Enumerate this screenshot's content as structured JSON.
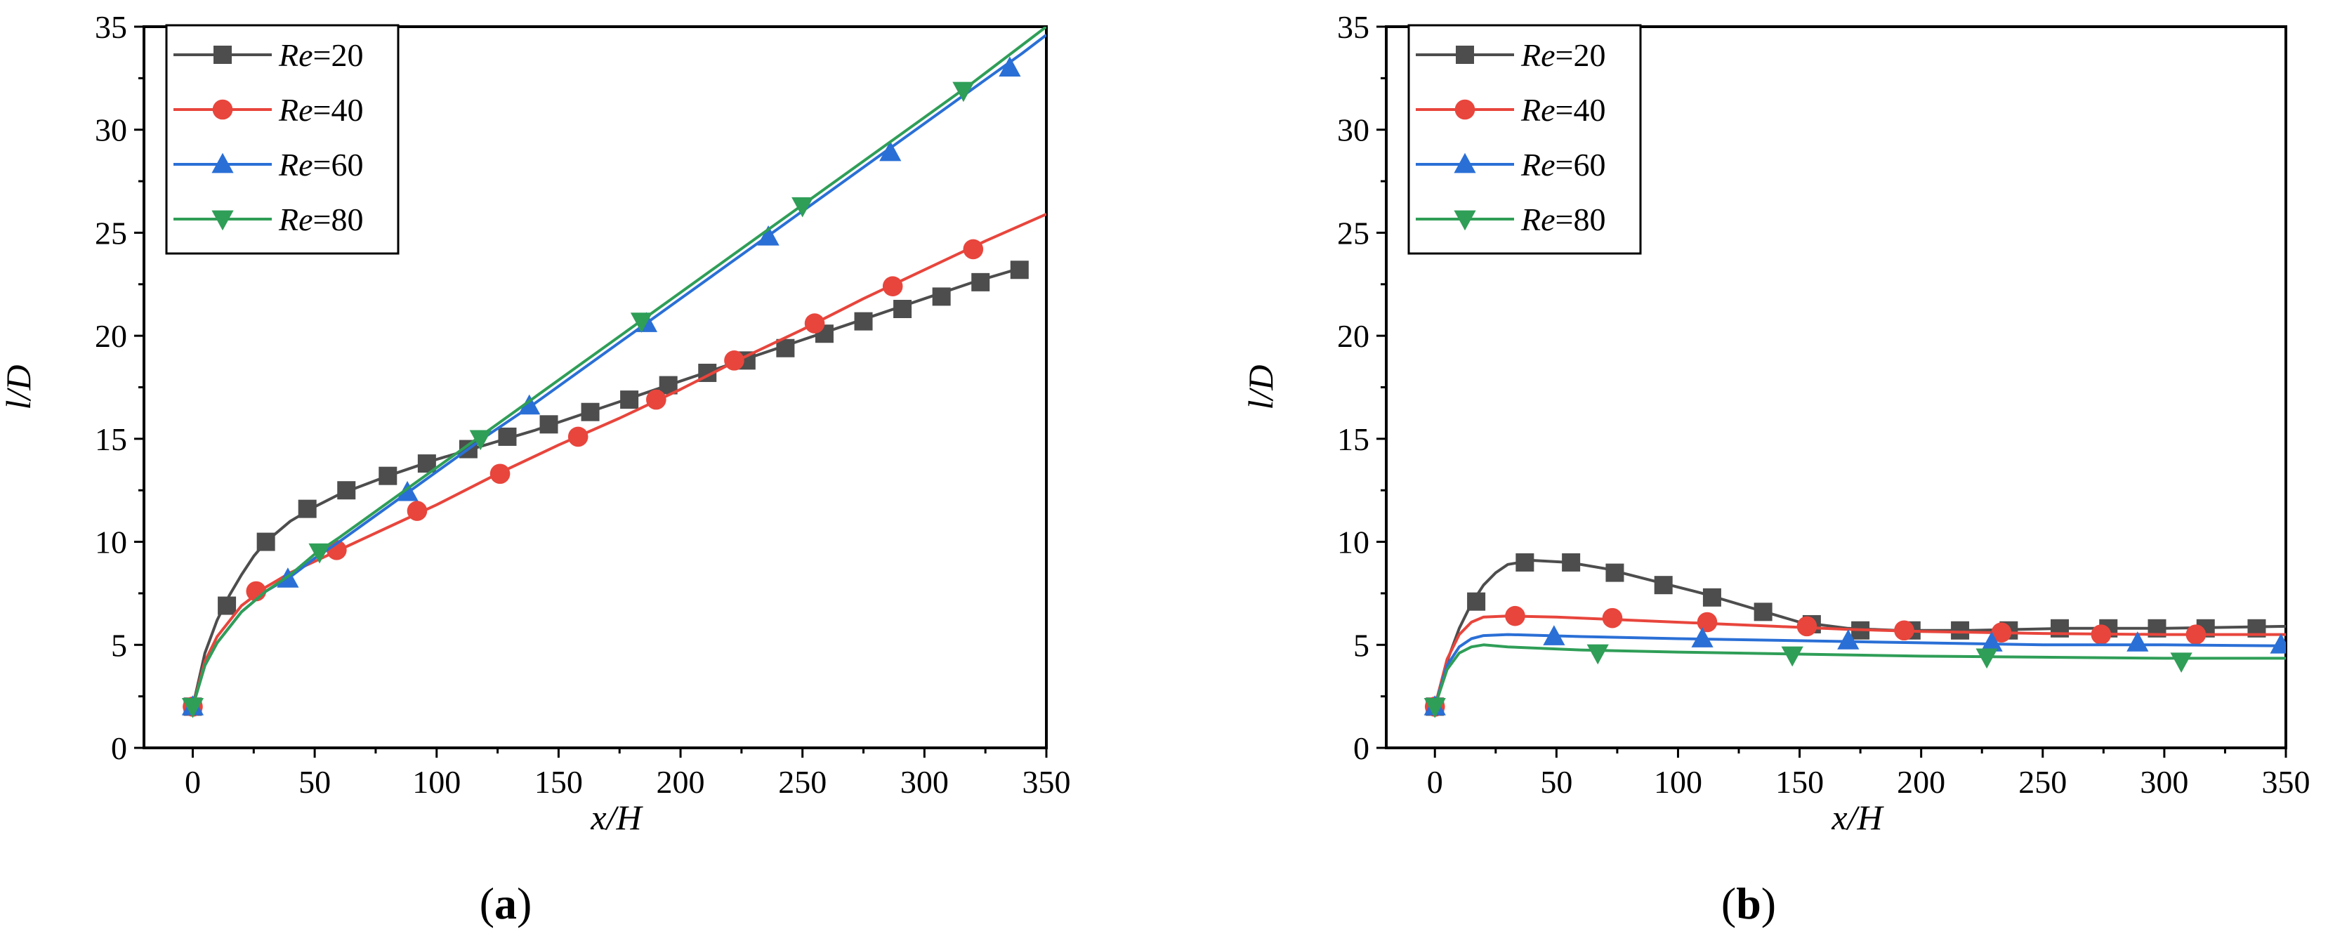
{
  "chart_data": [
    {
      "type": "line",
      "panel_label": "(a)",
      "panel_letter": "a",
      "xlabel": "x/H",
      "ylabel": "l/D",
      "xlim": [
        -20,
        350
      ],
      "ylim": [
        0,
        35
      ],
      "xticks": [
        0,
        50,
        100,
        150,
        200,
        250,
        300,
        350
      ],
      "yticks": [
        0,
        5,
        10,
        15,
        20,
        25,
        30,
        35
      ],
      "legend_position": "top-left",
      "series": [
        {
          "name": "Re=20",
          "re_value": "20",
          "color": "#4d4d4d",
          "marker": "square",
          "line": [
            [
              0,
              2.0
            ],
            [
              5,
              4.6
            ],
            [
              10,
              6.2
            ],
            [
              15,
              7.4
            ],
            [
              20,
              8.4
            ],
            [
              25,
              9.3
            ],
            [
              30,
              10.0
            ],
            [
              40,
              11.0
            ],
            [
              50,
              11.7
            ],
            [
              60,
              12.3
            ],
            [
              80,
              13.2
            ],
            [
              100,
              14.0
            ],
            [
              120,
              14.7
            ],
            [
              140,
              15.4
            ],
            [
              160,
              16.2
            ],
            [
              180,
              17.0
            ],
            [
              200,
              17.8
            ],
            [
              220,
              18.6
            ],
            [
              240,
              19.4
            ],
            [
              260,
              20.2
            ],
            [
              280,
              21.0
            ],
            [
              300,
              21.8
            ],
            [
              320,
              22.6
            ],
            [
              340,
              23.3
            ]
          ],
          "markers": [
            [
              0,
              2.0
            ],
            [
              14,
              6.9
            ],
            [
              30,
              10.0
            ],
            [
              47,
              11.6
            ],
            [
              63,
              12.5
            ],
            [
              80,
              13.2
            ],
            [
              96,
              13.8
            ],
            [
              113,
              14.5
            ],
            [
              129,
              15.1
            ],
            [
              146,
              15.7
            ],
            [
              163,
              16.3
            ],
            [
              179,
              16.9
            ],
            [
              195,
              17.6
            ],
            [
              211,
              18.2
            ],
            [
              227,
              18.8
            ],
            [
              243,
              19.4
            ],
            [
              259,
              20.1
            ],
            [
              275,
              20.7
            ],
            [
              291,
              21.3
            ],
            [
              307,
              21.9
            ],
            [
              323,
              22.6
            ],
            [
              339,
              23.2
            ]
          ]
        },
        {
          "name": "Re=40",
          "re_value": "40",
          "color": "#e8453c",
          "marker": "circle",
          "line": [
            [
              0,
              2.0
            ],
            [
              5,
              4.2
            ],
            [
              10,
              5.4
            ],
            [
              20,
              6.9
            ],
            [
              30,
              7.8
            ],
            [
              40,
              8.5
            ],
            [
              60,
              9.6
            ],
            [
              80,
              10.7
            ],
            [
              100,
              11.8
            ],
            [
              125,
              13.3
            ],
            [
              150,
              14.7
            ],
            [
              175,
              16.0
            ],
            [
              200,
              17.4
            ],
            [
              225,
              18.9
            ],
            [
              250,
              20.3
            ],
            [
              275,
              21.8
            ],
            [
              300,
              23.2
            ],
            [
              325,
              24.6
            ],
            [
              350,
              25.9
            ]
          ],
          "markers": [
            [
              0,
              2.0
            ],
            [
              26,
              7.6
            ],
            [
              59,
              9.6
            ],
            [
              92,
              11.5
            ],
            [
              126,
              13.3
            ],
            [
              158,
              15.1
            ],
            [
              190,
              16.9
            ],
            [
              222,
              18.8
            ],
            [
              255,
              20.6
            ],
            [
              287,
              22.4
            ],
            [
              320,
              24.2
            ]
          ]
        },
        {
          "name": "Re=60",
          "re_value": "60",
          "color": "#2a6fd6",
          "marker": "triangle-up",
          "line": [
            [
              0,
              2.0
            ],
            [
              5,
              4.0
            ],
            [
              10,
              5.1
            ],
            [
              20,
              6.6
            ],
            [
              30,
              7.6
            ],
            [
              40,
              8.3
            ],
            [
              50,
              9.2
            ],
            [
              60,
              10.0
            ],
            [
              80,
              11.7
            ],
            [
              100,
              13.4
            ],
            [
              120,
              15.1
            ],
            [
              140,
              16.7
            ],
            [
              160,
              18.4
            ],
            [
              180,
              20.1
            ],
            [
              200,
              21.8
            ],
            [
              220,
              23.5
            ],
            [
              240,
              25.2
            ],
            [
              260,
              26.9
            ],
            [
              280,
              28.6
            ],
            [
              300,
              30.3
            ],
            [
              320,
              32.0
            ],
            [
              340,
              33.7
            ],
            [
              350,
              34.6
            ]
          ],
          "markers": [
            [
              0,
              2.0
            ],
            [
              39,
              8.2
            ],
            [
              88,
              12.4
            ],
            [
              138,
              16.6
            ],
            [
              186,
              20.6
            ],
            [
              236,
              24.8
            ],
            [
              286,
              28.9
            ],
            [
              335,
              33.0
            ]
          ]
        },
        {
          "name": "Re=80",
          "re_value": "80",
          "color": "#2f9e57",
          "marker": "triangle-down",
          "line": [
            [
              0,
              2.0
            ],
            [
              5,
              4.0
            ],
            [
              10,
              5.1
            ],
            [
              20,
              6.6
            ],
            [
              30,
              7.6
            ],
            [
              40,
              8.4
            ],
            [
              50,
              9.4
            ],
            [
              60,
              10.2
            ],
            [
              80,
              11.9
            ],
            [
              100,
              13.6
            ],
            [
              120,
              15.3
            ],
            [
              140,
              17.0
            ],
            [
              160,
              18.7
            ],
            [
              180,
              20.4
            ],
            [
              200,
              22.1
            ],
            [
              220,
              23.8
            ],
            [
              240,
              25.5
            ],
            [
              260,
              27.2
            ],
            [
              280,
              28.9
            ],
            [
              300,
              30.6
            ],
            [
              320,
              32.3
            ],
            [
              340,
              34.1
            ],
            [
              350,
              35.0
            ]
          ],
          "markers": [
            [
              0,
              2.0
            ],
            [
              52,
              9.5
            ],
            [
              118,
              15.0
            ],
            [
              184,
              20.7
            ],
            [
              250,
              26.3
            ],
            [
              316,
              31.9
            ]
          ]
        }
      ]
    },
    {
      "type": "line",
      "panel_label": "(b)",
      "panel_letter": "b",
      "xlabel": "x/H",
      "ylabel": "l/D",
      "xlim": [
        -20,
        350
      ],
      "ylim": [
        0,
        35
      ],
      "xticks": [
        0,
        50,
        100,
        150,
        200,
        250,
        300,
        350
      ],
      "yticks": [
        0,
        5,
        10,
        15,
        20,
        25,
        30,
        35
      ],
      "legend_position": "top-left",
      "series": [
        {
          "name": "Re=20",
          "re_value": "20",
          "color": "#4d4d4d",
          "marker": "square",
          "line": [
            [
              0,
              2.0
            ],
            [
              5,
              4.2
            ],
            [
              10,
              5.8
            ],
            [
              15,
              7.0
            ],
            [
              20,
              7.9
            ],
            [
              25,
              8.5
            ],
            [
              30,
              8.9
            ],
            [
              40,
              9.1
            ],
            [
              55,
              9.0
            ],
            [
              70,
              8.7
            ],
            [
              90,
              8.1
            ],
            [
              110,
              7.5
            ],
            [
              130,
              6.8
            ],
            [
              150,
              6.1
            ],
            [
              170,
              5.8
            ],
            [
              190,
              5.7
            ],
            [
              220,
              5.7
            ],
            [
              260,
              5.8
            ],
            [
              300,
              5.8
            ],
            [
              350,
              5.9
            ]
          ],
          "markers": [
            [
              0,
              2.0
            ],
            [
              17,
              7.1
            ],
            [
              37,
              9.0
            ],
            [
              56,
              9.0
            ],
            [
              74,
              8.5
            ],
            [
              94,
              7.9
            ],
            [
              114,
              7.3
            ],
            [
              135,
              6.6
            ],
            [
              155,
              6.0
            ],
            [
              175,
              5.7
            ],
            [
              196,
              5.7
            ],
            [
              216,
              5.7
            ],
            [
              236,
              5.7
            ],
            [
              257,
              5.8
            ],
            [
              277,
              5.8
            ],
            [
              297,
              5.8
            ],
            [
              317,
              5.8
            ],
            [
              338,
              5.8
            ]
          ]
        },
        {
          "name": "Re=40",
          "re_value": "40",
          "color": "#e8453c",
          "marker": "circle",
          "line": [
            [
              0,
              2.0
            ],
            [
              5,
              4.3
            ],
            [
              10,
              5.5
            ],
            [
              15,
              6.1
            ],
            [
              20,
              6.35
            ],
            [
              30,
              6.4
            ],
            [
              50,
              6.35
            ],
            [
              80,
              6.2
            ],
            [
              110,
              6.05
            ],
            [
              140,
              5.9
            ],
            [
              170,
              5.75
            ],
            [
              200,
              5.65
            ],
            [
              250,
              5.55
            ],
            [
              300,
              5.5
            ],
            [
              350,
              5.5
            ]
          ],
          "markers": [
            [
              0,
              2.0
            ],
            [
              33,
              6.4
            ],
            [
              73,
              6.3
            ],
            [
              112,
              6.1
            ],
            [
              153,
              5.9
            ],
            [
              193,
              5.7
            ],
            [
              233,
              5.6
            ],
            [
              274,
              5.5
            ],
            [
              313,
              5.5
            ]
          ]
        },
        {
          "name": "Re=60",
          "re_value": "60",
          "color": "#2a6fd6",
          "marker": "triangle-up",
          "line": [
            [
              0,
              2.0
            ],
            [
              5,
              4.0
            ],
            [
              10,
              4.9
            ],
            [
              15,
              5.3
            ],
            [
              20,
              5.45
            ],
            [
              30,
              5.5
            ],
            [
              60,
              5.4
            ],
            [
              100,
              5.3
            ],
            [
              150,
              5.2
            ],
            [
              200,
              5.1
            ],
            [
              250,
              5.0
            ],
            [
              300,
              5.0
            ],
            [
              350,
              4.95
            ]
          ],
          "markers": [
            [
              0,
              2.0
            ],
            [
              49,
              5.4
            ],
            [
              110,
              5.3
            ],
            [
              170,
              5.2
            ],
            [
              229,
              5.1
            ],
            [
              289,
              5.1
            ],
            [
              348,
              5.0
            ]
          ]
        },
        {
          "name": "Re=80",
          "re_value": "80",
          "color": "#2f9e57",
          "marker": "triangle-down",
          "line": [
            [
              0,
              2.0
            ],
            [
              5,
              3.8
            ],
            [
              10,
              4.6
            ],
            [
              15,
              4.9
            ],
            [
              20,
              5.0
            ],
            [
              30,
              4.9
            ],
            [
              60,
              4.75
            ],
            [
              100,
              4.65
            ],
            [
              150,
              4.55
            ],
            [
              200,
              4.45
            ],
            [
              250,
              4.4
            ],
            [
              300,
              4.35
            ],
            [
              350,
              4.35
            ]
          ],
          "markers": [
            [
              0,
              2.0
            ],
            [
              67,
              4.6
            ],
            [
              147,
              4.5
            ],
            [
              227,
              4.4
            ],
            [
              307,
              4.2
            ]
          ]
        }
      ]
    }
  ]
}
